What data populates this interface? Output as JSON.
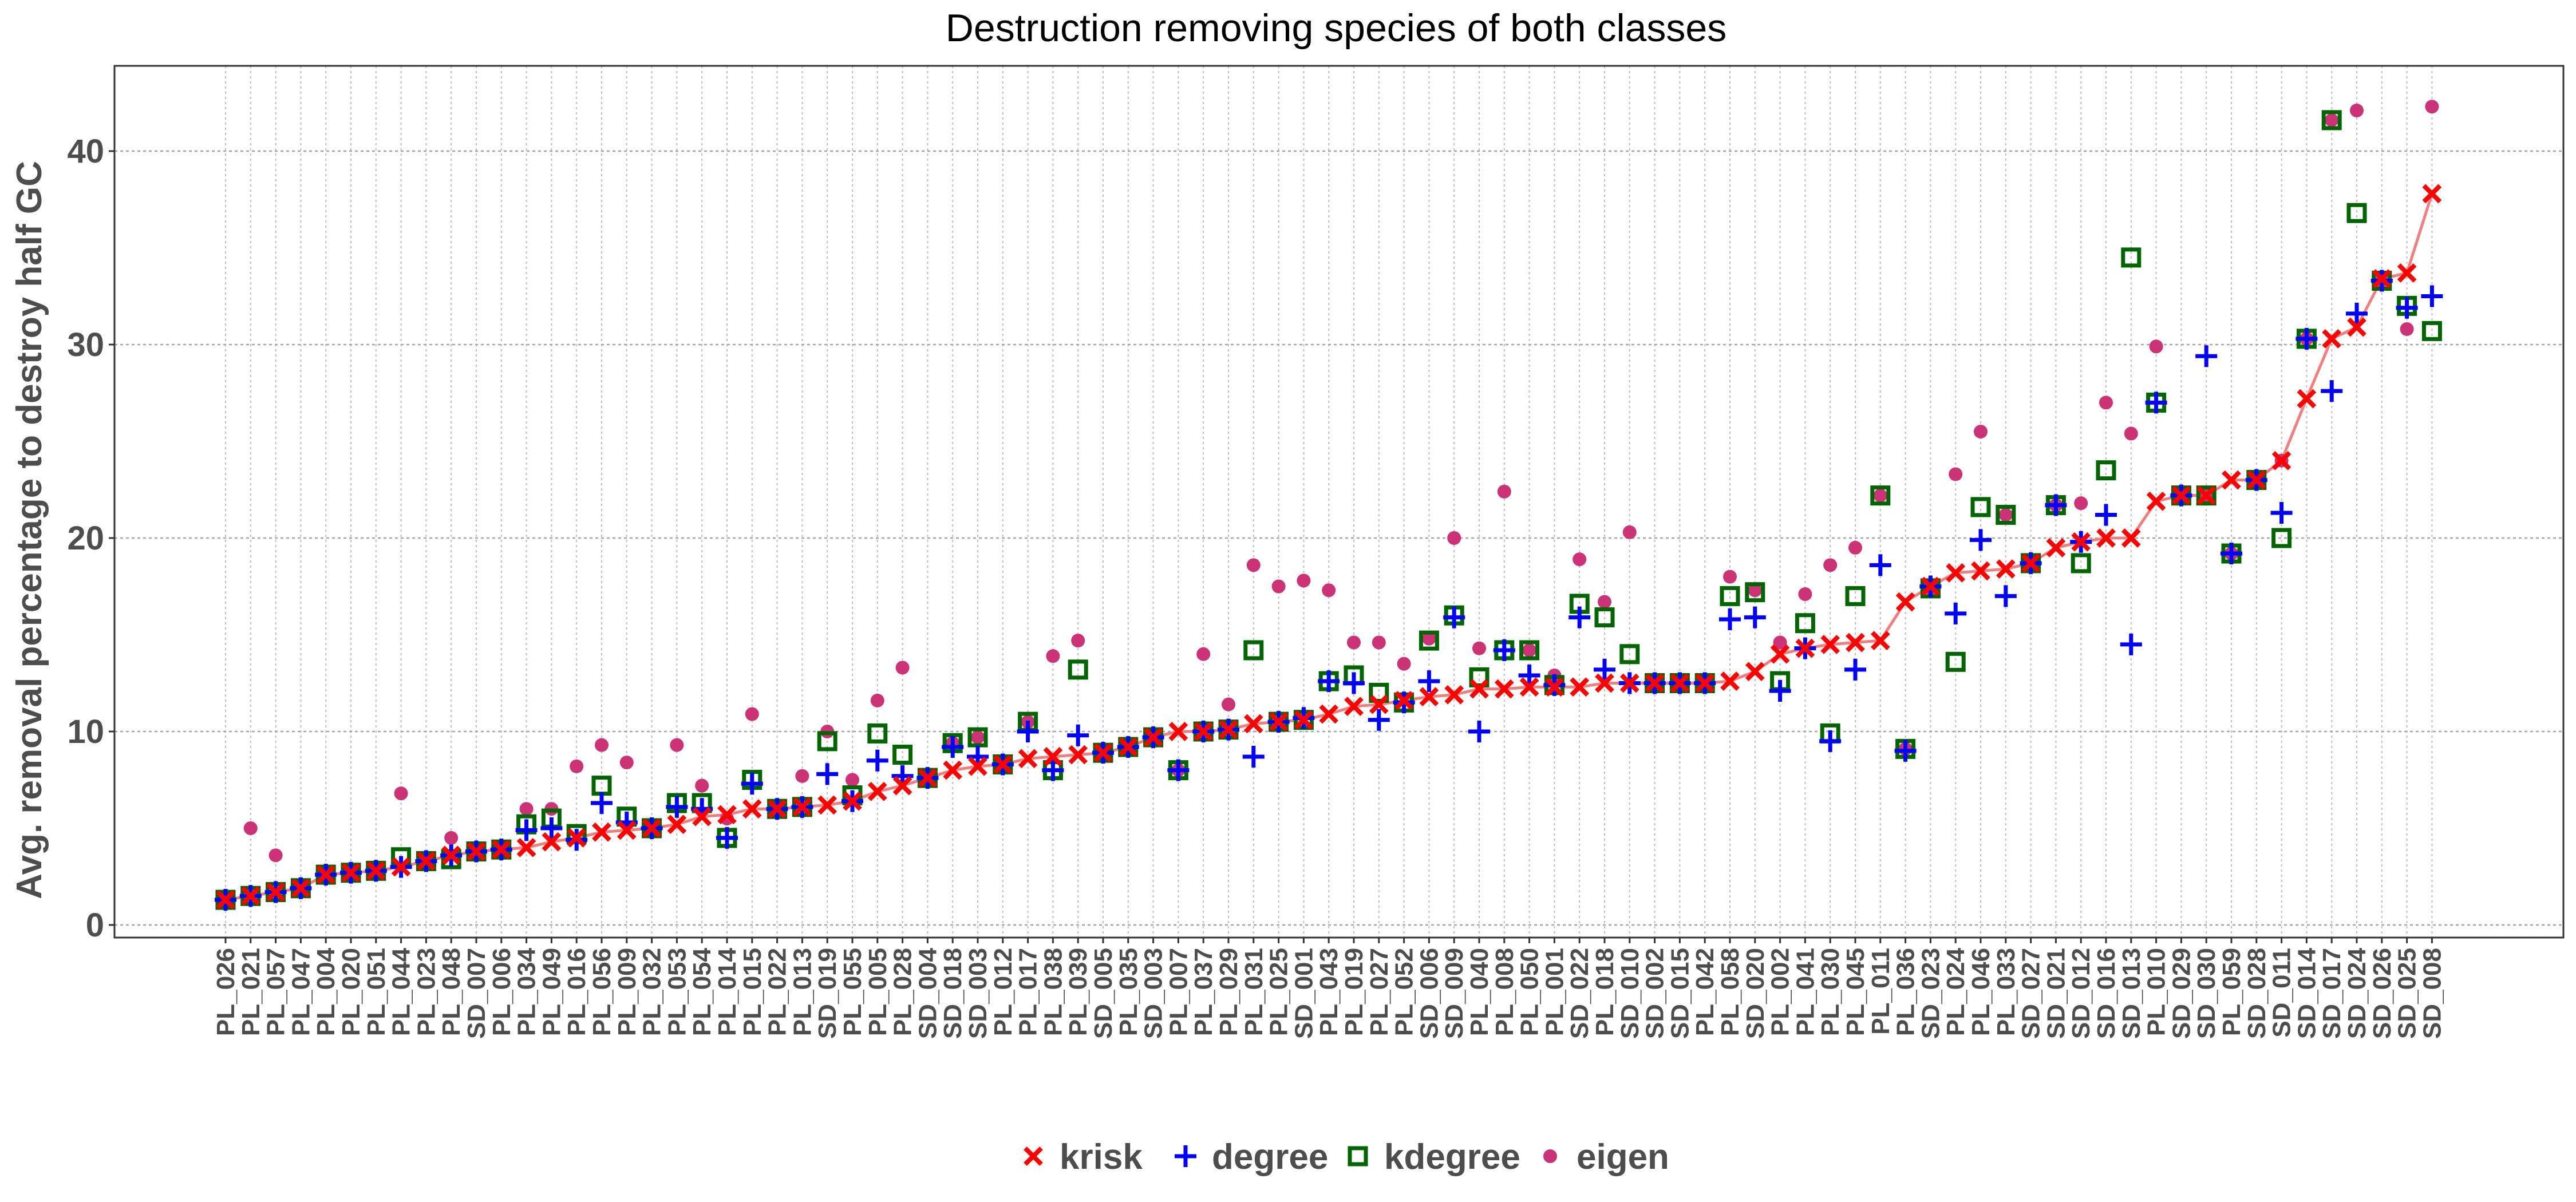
{
  "chart_data": {
    "type": "scatter",
    "title": "Destruction removing species of both classes",
    "ylabel": "Avg. removal percentage to destroy half GC",
    "xlabel": "",
    "ylim": [
      0,
      44
    ],
    "yticks": [
      0,
      10,
      20,
      30,
      40
    ],
    "grid": true,
    "legend_position": "bottom",
    "categories": [
      "PL_026",
      "PL_021",
      "PL_057",
      "PL_047",
      "PL_004",
      "PL_020",
      "PL_051",
      "PL_044",
      "PL_023",
      "PL_048",
      "SD_007",
      "PL_006",
      "PL_034",
      "PL_049",
      "PL_016",
      "PL_056",
      "PL_009",
      "PL_032",
      "PL_053",
      "PL_054",
      "PL_014",
      "PL_015",
      "PL_022",
      "PL_013",
      "SD_019",
      "PL_055",
      "PL_005",
      "PL_028",
      "SD_004",
      "SD_018",
      "SD_003",
      "PL_012",
      "PL_017",
      "PL_038",
      "PL_039",
      "SD_005",
      "PL_035",
      "SD_003",
      "PL_007",
      "PL_037",
      "PL_029",
      "PL_031",
      "PL_025",
      "SD_001",
      "PL_043",
      "PL_019",
      "PL_027",
      "PL_052",
      "SD_006",
      "SD_009",
      "PL_040",
      "PL_008",
      "PL_050",
      "PL_001",
      "SD_022",
      "PL_018",
      "SD_010",
      "SD_002",
      "SD_015",
      "PL_042",
      "PL_058",
      "SD_020",
      "PL_002",
      "PL_041",
      "PL_030",
      "PL_045",
      "PL_011",
      "PL_036",
      "SD_023",
      "PL_024",
      "PL_046",
      "PL_033",
      "SD_027",
      "SD_021",
      "SD_012",
      "SD_016",
      "SD_013",
      "PL_010",
      "SD_029",
      "SD_030",
      "PL_059",
      "SD_028",
      "SD_011",
      "SD_014",
      "SD_017",
      "SD_024",
      "SD_026",
      "SD_025",
      "SD_008"
    ],
    "series": [
      {
        "name": "krisk",
        "marker": "x",
        "color": "#ff0000",
        "line": true,
        "values": [
          1.3,
          1.5,
          1.7,
          1.9,
          2.6,
          2.7,
          2.8,
          3.0,
          3.3,
          3.6,
          3.8,
          3.9,
          4.0,
          4.3,
          4.5,
          4.8,
          4.9,
          5.0,
          5.2,
          5.6,
          5.7,
          6.0,
          6.0,
          6.1,
          6.2,
          6.4,
          6.9,
          7.2,
          7.6,
          8.0,
          8.2,
          8.3,
          8.6,
          8.7,
          8.8,
          8.9,
          9.2,
          9.7,
          10.0,
          10.0,
          10.1,
          10.4,
          10.5,
          10.6,
          10.9,
          11.3,
          11.4,
          11.6,
          11.8,
          11.9,
          12.2,
          12.2,
          12.3,
          12.3,
          12.3,
          12.5,
          12.5,
          12.5,
          12.5,
          12.5,
          12.6,
          13.1,
          14.0,
          14.3,
          14.5,
          14.6,
          14.7,
          16.7,
          17.5,
          18.2,
          18.3,
          18.4,
          18.7,
          19.5,
          19.8,
          20.0,
          20.0,
          21.9,
          22.2,
          22.2,
          23.0,
          23.0,
          24.0,
          27.2,
          30.3,
          30.9,
          33.4,
          33.7,
          37.8
        ]
      },
      {
        "name": "degree",
        "marker": "plus",
        "color": "#0000ff",
        "values": [
          1.3,
          1.5,
          1.7,
          1.9,
          2.6,
          2.7,
          2.8,
          3.0,
          3.3,
          3.6,
          3.8,
          3.9,
          4.9,
          5.0,
          4.4,
          6.3,
          5.3,
          5.0,
          6.1,
          6.0,
          4.5,
          7.3,
          6.0,
          6.1,
          7.8,
          6.4,
          8.5,
          7.7,
          7.6,
          9.2,
          8.7,
          8.3,
          10.0,
          8.0,
          9.8,
          8.9,
          9.2,
          9.7,
          8.0,
          10.0,
          10.1,
          8.7,
          10.5,
          10.7,
          12.6,
          12.5,
          10.6,
          11.5,
          12.6,
          15.9,
          10.0,
          14.2,
          12.9,
          12.4,
          15.9,
          13.2,
          12.5,
          12.5,
          12.5,
          12.5,
          15.8,
          15.9,
          12.1,
          14.3,
          9.5,
          13.2,
          18.6,
          9.0,
          17.5,
          16.1,
          19.9,
          17.0,
          18.7,
          21.7,
          19.8,
          21.2,
          14.5,
          27.0,
          22.2,
          29.4,
          19.2,
          23.0,
          21.3,
          30.3,
          27.6,
          31.6,
          33.3,
          31.9,
          32.5
        ]
      },
      {
        "name": "kdegree",
        "marker": "square",
        "color": "#006400",
        "values": [
          1.3,
          1.5,
          1.7,
          1.9,
          2.6,
          2.7,
          2.8,
          3.5,
          3.3,
          3.4,
          3.8,
          3.9,
          5.2,
          5.5,
          4.7,
          7.2,
          5.6,
          5.0,
          6.3,
          6.3,
          4.5,
          7.5,
          6.0,
          6.1,
          9.5,
          6.7,
          9.9,
          8.8,
          7.6,
          9.4,
          9.7,
          8.3,
          10.5,
          8.0,
          13.2,
          8.9,
          9.2,
          9.7,
          8.0,
          10.0,
          10.1,
          14.2,
          10.5,
          10.6,
          12.6,
          12.9,
          12.0,
          11.5,
          14.7,
          16.0,
          12.8,
          14.2,
          14.2,
          12.4,
          16.6,
          15.9,
          14.0,
          12.5,
          12.5,
          12.5,
          17.0,
          17.2,
          12.6,
          15.6,
          9.9,
          17.0,
          22.2,
          9.1,
          17.4,
          13.6,
          21.6,
          21.2,
          18.7,
          21.7,
          18.7,
          23.5,
          34.5,
          27.0,
          22.2,
          22.2,
          19.2,
          23.0,
          20.0,
          30.3,
          41.6,
          36.8,
          33.3,
          32.0,
          30.7
        ]
      },
      {
        "name": "eigen",
        "marker": "dot",
        "color": "#cc3377",
        "values": [
          1.3,
          5.0,
          3.6,
          1.9,
          2.6,
          2.7,
          2.8,
          6.8,
          3.3,
          4.5,
          3.8,
          3.9,
          6.0,
          6.0,
          8.2,
          9.3,
          8.4,
          5.0,
          9.3,
          7.2,
          5.5,
          10.9,
          6.0,
          7.7,
          10.0,
          7.5,
          11.6,
          13.3,
          7.6,
          9.4,
          9.7,
          8.3,
          10.5,
          13.9,
          14.7,
          8.9,
          9.2,
          9.7,
          8.0,
          14.0,
          11.4,
          18.6,
          17.5,
          17.8,
          17.3,
          14.6,
          14.6,
          13.5,
          14.8,
          20.0,
          14.3,
          22.4,
          14.2,
          12.9,
          18.9,
          16.7,
          20.3,
          12.5,
          12.5,
          12.5,
          18.0,
          17.3,
          14.6,
          17.1,
          18.6,
          19.5,
          22.2,
          9.1,
          17.4,
          23.3,
          25.5,
          21.2,
          18.7,
          21.7,
          21.8,
          27.0,
          25.4,
          29.9,
          22.2,
          22.2,
          19.2,
          23.0,
          24.0,
          30.3,
          41.6,
          42.1,
          33.3,
          30.8,
          42.3
        ]
      }
    ]
  }
}
